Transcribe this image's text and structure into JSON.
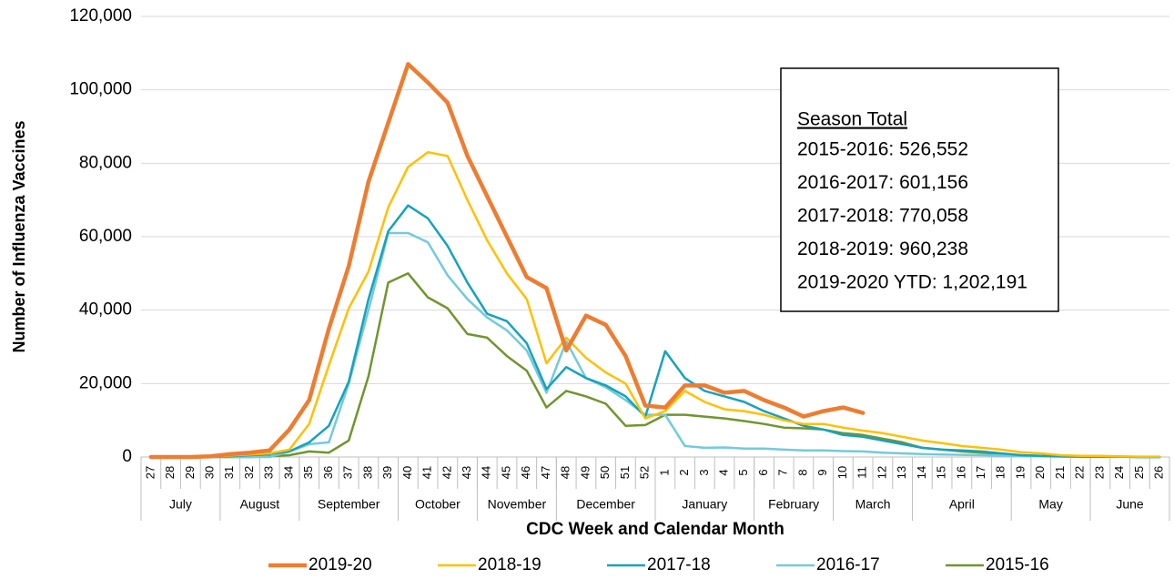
{
  "chart_data": {
    "type": "line",
    "y_label": "Number of Influenza Vaccines",
    "x_label": "CDC Week and Calendar Month",
    "categories": [
      "27",
      "28",
      "29",
      "30",
      "31",
      "32",
      "33",
      "34",
      "35",
      "36",
      "37",
      "38",
      "39",
      "40",
      "41",
      "42",
      "43",
      "44",
      "45",
      "46",
      "47",
      "48",
      "49",
      "50",
      "51",
      "52",
      "1",
      "2",
      "3",
      "4",
      "5",
      "6",
      "7",
      "8",
      "9",
      "10",
      "11",
      "12",
      "13",
      "14",
      "15",
      "16",
      "17",
      "18",
      "19",
      "20",
      "21",
      "22",
      "23",
      "24",
      "25",
      "26"
    ],
    "month_groups": [
      {
        "label": "July",
        "span": 4
      },
      {
        "label": "August",
        "span": 4
      },
      {
        "label": "September",
        "span": 5
      },
      {
        "label": "October",
        "span": 4
      },
      {
        "label": "November",
        "span": 4
      },
      {
        "label": "December",
        "span": 5
      },
      {
        "label": "January",
        "span": 5
      },
      {
        "label": "February",
        "span": 4
      },
      {
        "label": "March",
        "span": 4
      },
      {
        "label": "April",
        "span": 5
      },
      {
        "label": "May",
        "span": 4
      },
      {
        "label": "June",
        "span": 4
      }
    ],
    "ylim": [
      0,
      120000
    ],
    "yticks": [
      0,
      {
        "value": 20000,
        "label": "20,000"
      },
      {
        "value": 40000,
        "label": "40,000"
      },
      {
        "value": 60000,
        "label": "60,000"
      },
      {
        "value": 80000,
        "label": "80,000"
      },
      {
        "value": 100000,
        "label": "100,000"
      },
      {
        "value": 120000,
        "label": "120,000"
      }
    ],
    "grid": true,
    "legend": "bottom",
    "series": [
      {
        "name": "2019-20",
        "color": "#ED7D31",
        "width": 4.5,
        "values": [
          0,
          0,
          0,
          200,
          800,
          1200,
          1800,
          7500,
          15500,
          35000,
          52000,
          75000,
          91000,
          107000,
          102000,
          96500,
          82000,
          71000,
          60000,
          49000,
          46000,
          29000,
          38500,
          36000,
          27500,
          14000,
          13500,
          19500,
          19500,
          17500,
          18000,
          15500,
          13500,
          11000,
          12500,
          13500,
          12000,
          null,
          null,
          null,
          null,
          null,
          null,
          null,
          null,
          null,
          null,
          null,
          null,
          null,
          null,
          null
        ]
      },
      {
        "name": "2018-19",
        "color": "#FFC000",
        "width": 2.5,
        "values": [
          0,
          0,
          0,
          0,
          400,
          700,
          1000,
          2000,
          9000,
          25000,
          40500,
          50500,
          68000,
          79000,
          83000,
          82000,
          70000,
          59000,
          50000,
          43000,
          25500,
          32500,
          27000,
          23000,
          20000,
          10500,
          12500,
          18000,
          15000,
          13000,
          12500,
          11500,
          10000,
          9000,
          9000,
          8000,
          7200,
          6500,
          5500,
          4500,
          3800,
          3000,
          2500,
          2000,
          1300,
          1000,
          500,
          300,
          300,
          200,
          100,
          100
        ]
      },
      {
        "name": "2017-18",
        "color": "#17A2BD",
        "width": 2.5,
        "values": [
          0,
          0,
          0,
          0,
          200,
          500,
          800,
          1500,
          4000,
          8500,
          20500,
          43000,
          61500,
          68500,
          65000,
          57500,
          47500,
          39000,
          37000,
          31000,
          18500,
          24500,
          21500,
          19500,
          16500,
          11000,
          28800,
          21500,
          18000,
          16500,
          15000,
          12500,
          10500,
          8500,
          7500,
          6000,
          5500,
          4500,
          3500,
          2500,
          2000,
          1800,
          1500,
          1000,
          500,
          300,
          200,
          100,
          100,
          100,
          0,
          0
        ]
      },
      {
        "name": "2016-17",
        "color": "#73CADB",
        "width": 2.5,
        "values": [
          0,
          0,
          0,
          0,
          0,
          0,
          0,
          1500,
          3500,
          4000,
          20000,
          40000,
          61000,
          61000,
          58500,
          49500,
          43000,
          38000,
          34500,
          29000,
          17500,
          31500,
          21500,
          19000,
          15500,
          11500,
          11500,
          3000,
          2500,
          2600,
          2300,
          2300,
          2000,
          1800,
          1800,
          1600,
          1500,
          1200,
          1000,
          800,
          700,
          600,
          500,
          400,
          300,
          200,
          100,
          100,
          100,
          100,
          0,
          0
        ]
      },
      {
        "name": "2015-16",
        "color": "#70952E",
        "width": 2.5,
        "values": [
          0,
          0,
          0,
          0,
          0,
          0,
          200,
          500,
          1500,
          1200,
          4500,
          22000,
          47500,
          50000,
          43500,
          40500,
          33500,
          32500,
          27500,
          23500,
          13500,
          18000,
          16500,
          14500,
          8500,
          8700,
          11500,
          11500,
          11000,
          10500,
          9800,
          9000,
          8000,
          7800,
          7500,
          6500,
          6000,
          5000,
          4000,
          2500,
          2000,
          1500,
          1200,
          800,
          500,
          300,
          200,
          100,
          100,
          100,
          0,
          0
        ]
      }
    ],
    "annotation": {
      "title": "Season Total",
      "lines": [
        "2015-2016: 526,552",
        "2016-2017: 601,156",
        "2017-2018: 770,058",
        "2018-2019: 960,238",
        "2019-2020 YTD: 1,202,191"
      ]
    }
  }
}
